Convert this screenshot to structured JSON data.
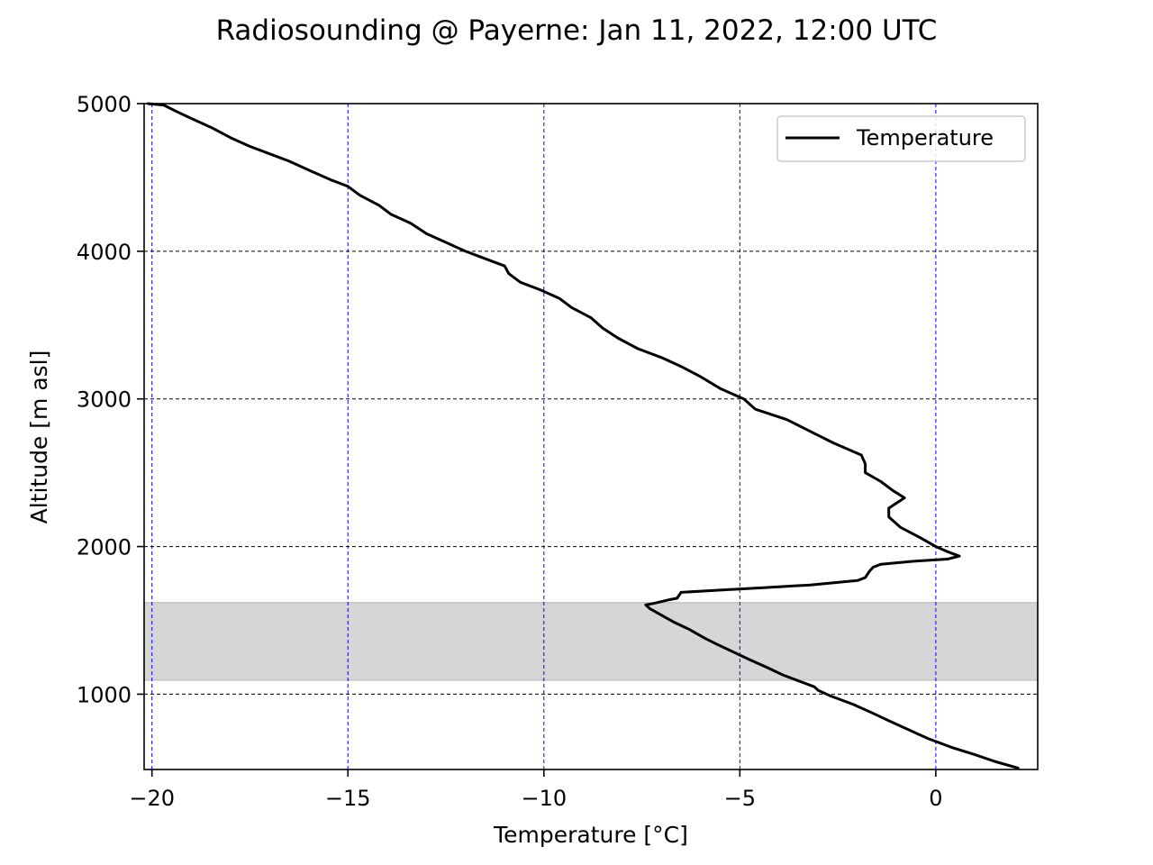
{
  "chart_data": {
    "type": "line",
    "title": "Radiosounding @ Payerne: Jan 11, 2022, 12:00 UTC",
    "xlabel": "Temperature [°C]",
    "ylabel": "Altitude [m asl]",
    "xlim": [
      -20.2,
      2.6
    ],
    "ylim": [
      490,
      5000
    ],
    "xticks": [
      -20,
      -15,
      -10,
      -5,
      0
    ],
    "xtick_labels": [
      "−20",
      "−15",
      "−10",
      "−5",
      "0"
    ],
    "yticks": [
      1000,
      2000,
      3000,
      4000,
      5000
    ],
    "ytick_labels": [
      "1000",
      "2000",
      "3000",
      "4000",
      "5000"
    ],
    "grid": {
      "x": {
        "on": true,
        "style": "dashed",
        "color": "#0000ff"
      },
      "y": {
        "on": true,
        "style": "dashed",
        "color": "#000000"
      }
    },
    "legend": {
      "placement": "upper-right",
      "entries": [
        "Temperature"
      ]
    },
    "shaded_band": {
      "y_from": 1095,
      "y_to": 1620,
      "color": "#d6d6d6"
    },
    "series": [
      {
        "name": "Temperature",
        "color": "#000000",
        "points": [
          [
            2.1,
            500
          ],
          [
            1.5,
            545
          ],
          [
            1.0,
            590
          ],
          [
            0.4,
            640
          ],
          [
            -0.2,
            700
          ],
          [
            -0.7,
            760
          ],
          [
            -1.2,
            820
          ],
          [
            -1.6,
            870
          ],
          [
            -2.1,
            930
          ],
          [
            -2.7,
            990
          ],
          [
            -3.0,
            1025
          ],
          [
            -3.1,
            1050
          ],
          [
            -3.4,
            1080
          ],
          [
            -3.9,
            1130
          ],
          [
            -4.3,
            1180
          ],
          [
            -4.8,
            1240
          ],
          [
            -5.2,
            1290
          ],
          [
            -5.6,
            1340
          ],
          [
            -5.9,
            1380
          ],
          [
            -6.3,
            1440
          ],
          [
            -6.7,
            1490
          ],
          [
            -7.3,
            1580
          ],
          [
            -7.4,
            1605
          ],
          [
            -7.2,
            1615
          ],
          [
            -6.8,
            1640
          ],
          [
            -6.6,
            1650
          ],
          [
            -6.5,
            1690
          ],
          [
            -5.5,
            1705
          ],
          [
            -4.5,
            1720
          ],
          [
            -3.2,
            1740
          ],
          [
            -2.0,
            1770
          ],
          [
            -1.8,
            1790
          ],
          [
            -1.7,
            1830
          ],
          [
            -1.6,
            1860
          ],
          [
            -1.4,
            1880
          ],
          [
            -0.6,
            1900
          ],
          [
            0.3,
            1915
          ],
          [
            0.6,
            1935
          ],
          [
            0.3,
            1965
          ],
          [
            0.0,
            2000
          ],
          [
            -0.4,
            2060
          ],
          [
            -0.9,
            2130
          ],
          [
            -1.2,
            2200
          ],
          [
            -1.2,
            2260
          ],
          [
            -0.8,
            2330
          ],
          [
            -1.1,
            2380
          ],
          [
            -1.4,
            2440
          ],
          [
            -1.8,
            2500
          ],
          [
            -1.8,
            2560
          ],
          [
            -1.9,
            2620
          ],
          [
            -2.6,
            2700
          ],
          [
            -3.2,
            2780
          ],
          [
            -3.8,
            2860
          ],
          [
            -4.6,
            2930
          ],
          [
            -4.9,
            3000
          ],
          [
            -5.5,
            3070
          ],
          [
            -6.0,
            3150
          ],
          [
            -6.5,
            3220
          ],
          [
            -7.0,
            3280
          ],
          [
            -7.6,
            3340
          ],
          [
            -8.1,
            3410
          ],
          [
            -8.5,
            3480
          ],
          [
            -8.8,
            3550
          ],
          [
            -9.3,
            3620
          ],
          [
            -9.6,
            3680
          ],
          [
            -10.1,
            3740
          ],
          [
            -10.6,
            3790
          ],
          [
            -10.9,
            3850
          ],
          [
            -11.0,
            3900
          ],
          [
            -11.4,
            3940
          ],
          [
            -12.0,
            4000
          ],
          [
            -12.5,
            4060
          ],
          [
            -13.0,
            4120
          ],
          [
            -13.4,
            4190
          ],
          [
            -13.9,
            4250
          ],
          [
            -14.2,
            4310
          ],
          [
            -14.7,
            4380
          ],
          [
            -15.0,
            4440
          ],
          [
            -15.4,
            4480
          ],
          [
            -16.0,
            4550
          ],
          [
            -16.5,
            4610
          ],
          [
            -17.0,
            4660
          ],
          [
            -17.5,
            4710
          ],
          [
            -18.0,
            4770
          ],
          [
            -18.5,
            4840
          ],
          [
            -19.0,
            4900
          ],
          [
            -19.4,
            4950
          ],
          [
            -19.7,
            4990
          ],
          [
            -20.1,
            5000
          ]
        ]
      }
    ]
  }
}
